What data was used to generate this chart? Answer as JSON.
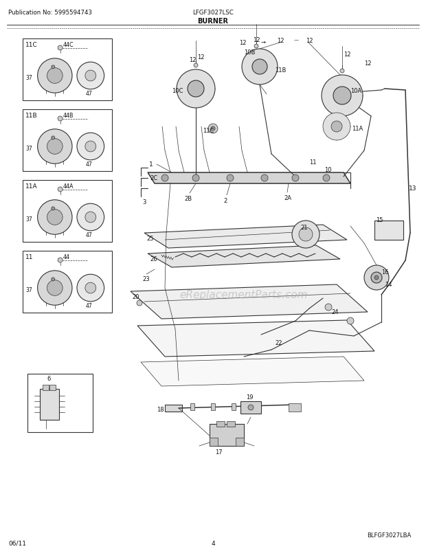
{
  "pub_no_text": "Publication No: 5995594743",
  "model_text": "LFGF3027LSC",
  "section_text": "BURNER",
  "footer_left": "06/11",
  "footer_center": "4",
  "footer_right": "BLFGF3027LBA",
  "bg_color": "#ffffff",
  "lc": "#333333",
  "watermark_text": "eReplacementParts.com",
  "fig_width": 6.2,
  "fig_height": 8.03,
  "dpi": 100
}
